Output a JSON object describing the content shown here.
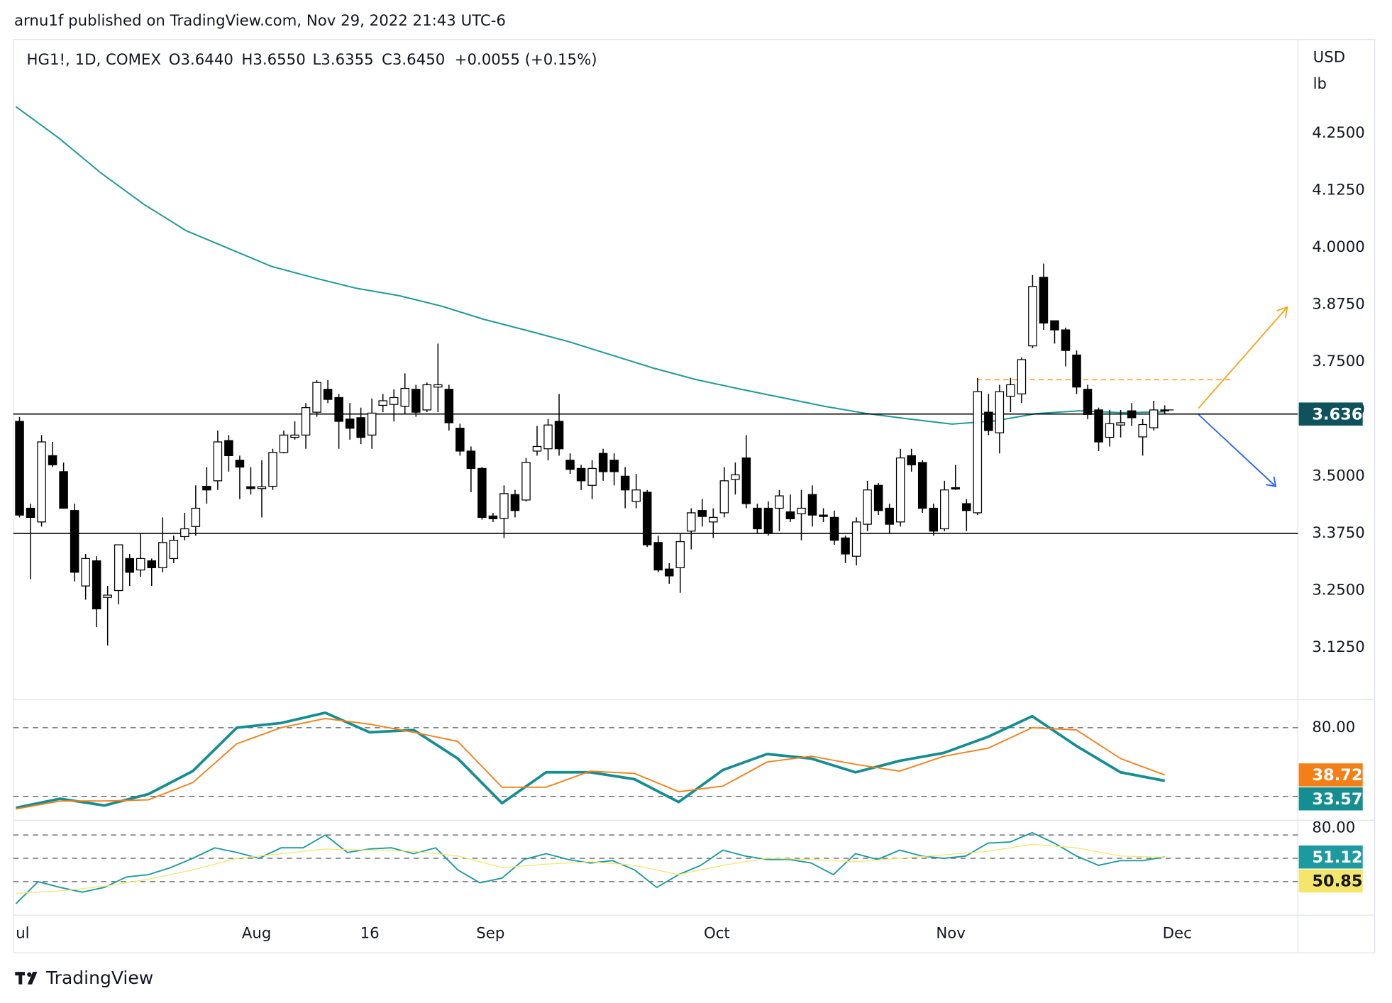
{
  "header": {
    "text": "arnu1f published on TradingView.com, Nov 29, 2022 21:43 UTC-6"
  },
  "footer": {
    "brand": "TradingView"
  },
  "chart_data": [
    {
      "type": "candlestick",
      "title": "HG1!, 1D, COMEX",
      "legend": {
        "open": "O3.6440",
        "high": "H3.6550",
        "low": "L3.6355",
        "close": "C3.6450",
        "change": "+0.0055 (+0.15%)"
      },
      "units": [
        "USD",
        "lb"
      ],
      "ylim": [
        3.008,
        4.456
      ],
      "yticks": [
        {
          "value": 4.25,
          "label": "4.2500"
        },
        {
          "value": 4.125,
          "label": "4.1250"
        },
        {
          "value": 4,
          "label": "4.0000"
        },
        {
          "value": 3.875,
          "label": "3.8750"
        },
        {
          "value": 3.75,
          "label": "3.7500"
        },
        {
          "value": 3.5,
          "label": "3.5000"
        },
        {
          "value": 3.375,
          "label": "3.3750"
        },
        {
          "value": 3.25,
          "label": "3.2500"
        },
        {
          "value": 3.125,
          "label": "3.1250"
        }
      ],
      "grid": false,
      "xlim": [
        "2022-06-28",
        "2022-12-17"
      ],
      "xticks": [
        {
          "value": "2022-07-01",
          "label": "ul"
        },
        {
          "value": "2022-08-01",
          "label": "Aug"
        },
        {
          "value": "2022-08-16",
          "label": "16"
        },
        {
          "value": "2022-09-01",
          "label": "Sep"
        },
        {
          "value": "2022-10-01",
          "label": "Oct"
        },
        {
          "value": "2022-11-01",
          "label": "Nov"
        },
        {
          "value": "2022-12-01",
          "label": "Dec"
        }
      ],
      "up_color": "#ffffff",
      "down_color": "#000000",
      "open": [
        3.62,
        3.43,
        3.4,
        3.545,
        3.51,
        3.425,
        3.26,
        3.315,
        3.235,
        3.25,
        3.32,
        3.295,
        3.315,
        3.3,
        3.32,
        3.368,
        3.39,
        3.478,
        3.49,
        3.578,
        3.535,
        3.477,
        3.473,
        3.478,
        3.552,
        3.585,
        3.59,
        3.64,
        3.69,
        3.672,
        3.625,
        3.628,
        3.59,
        3.655,
        3.657,
        3.653,
        3.69,
        3.645,
        3.695,
        3.69,
        3.605,
        3.555,
        3.517,
        3.413,
        3.408,
        3.46,
        3.448,
        3.555,
        3.56,
        3.62,
        3.535,
        3.517,
        3.48,
        3.55,
        3.535,
        3.5,
        3.445,
        3.465,
        3.355,
        3.297,
        3.3,
        3.38,
        3.425,
        3.4,
        3.42,
        3.493,
        3.54,
        3.43,
        3.43,
        3.43,
        3.422,
        3.418,
        3.46,
        3.415,
        3.41,
        3.365,
        3.325,
        3.395,
        3.48,
        3.43,
        3.4,
        3.545,
        3.53,
        3.43,
        3.385,
        3.475,
        3.44,
        3.42,
        3.64,
        3.595,
        3.675,
        3.68,
        3.785,
        3.935,
        3.84,
        3.82,
        3.765,
        3.69,
        3.645,
        3.585,
        3.612,
        3.643,
        3.586,
        3.606,
        3.644
      ],
      "high": [
        3.63,
        3.44,
        3.59,
        3.575,
        3.53,
        3.44,
        3.33,
        3.325,
        3.26,
        3.35,
        3.33,
        3.375,
        3.32,
        3.41,
        3.37,
        3.42,
        3.48,
        3.52,
        3.6,
        3.59,
        3.545,
        3.52,
        3.535,
        3.56,
        3.6,
        3.62,
        3.66,
        3.71,
        3.71,
        3.68,
        3.66,
        3.65,
        3.67,
        3.68,
        3.69,
        3.725,
        3.7,
        3.705,
        3.79,
        3.7,
        3.615,
        3.565,
        3.52,
        3.42,
        3.48,
        3.47,
        3.54,
        3.61,
        3.625,
        3.68,
        3.55,
        3.525,
        3.535,
        3.56,
        3.55,
        3.52,
        3.505,
        3.47,
        3.37,
        3.31,
        3.375,
        3.43,
        3.45,
        3.43,
        3.52,
        3.53,
        3.59,
        3.44,
        3.445,
        3.47,
        3.46,
        3.47,
        3.48,
        3.43,
        3.425,
        3.37,
        3.41,
        3.49,
        3.485,
        3.44,
        3.56,
        3.56,
        3.535,
        3.44,
        3.49,
        3.525,
        3.45,
        3.715,
        3.68,
        3.7,
        3.715,
        3.76,
        3.94,
        3.965,
        3.84,
        3.825,
        3.775,
        3.7,
        3.65,
        3.645,
        3.645,
        3.66,
        3.625,
        3.665,
        3.655
      ],
      "low": [
        3.41,
        3.275,
        3.39,
        3.52,
        3.43,
        3.27,
        3.23,
        3.17,
        3.13,
        3.22,
        3.26,
        3.28,
        3.26,
        3.29,
        3.31,
        3.36,
        3.37,
        3.44,
        3.47,
        3.51,
        3.45,
        3.46,
        3.41,
        3.47,
        3.55,
        3.58,
        3.56,
        3.63,
        3.66,
        3.56,
        3.58,
        3.57,
        3.56,
        3.64,
        3.62,
        3.635,
        3.63,
        3.64,
        3.64,
        3.6,
        3.545,
        3.465,
        3.405,
        3.4,
        3.365,
        3.41,
        3.445,
        3.545,
        3.535,
        3.545,
        3.505,
        3.47,
        3.45,
        3.49,
        3.48,
        3.43,
        3.43,
        3.345,
        3.29,
        3.265,
        3.245,
        3.34,
        3.39,
        3.365,
        3.41,
        3.46,
        3.43,
        3.375,
        3.37,
        3.38,
        3.4,
        3.36,
        3.39,
        3.4,
        3.35,
        3.31,
        3.305,
        3.38,
        3.415,
        3.375,
        3.39,
        3.51,
        3.42,
        3.37,
        3.38,
        3.47,
        3.38,
        3.415,
        3.59,
        3.55,
        3.64,
        3.66,
        3.78,
        3.82,
        3.79,
        3.74,
        3.68,
        3.625,
        3.555,
        3.565,
        3.585,
        3.61,
        3.545,
        3.6,
        3.6355
      ],
      "close": [
        3.415,
        3.41,
        3.575,
        3.525,
        3.43,
        3.29,
        3.32,
        3.21,
        3.24,
        3.35,
        3.29,
        3.32,
        3.3,
        3.355,
        3.36,
        3.385,
        3.43,
        3.47,
        3.575,
        3.545,
        3.52,
        3.473,
        3.477,
        3.552,
        3.59,
        3.59,
        3.65,
        3.705,
        3.668,
        3.62,
        3.605,
        3.585,
        3.638,
        3.665,
        3.672,
        3.692,
        3.64,
        3.7,
        3.7,
        3.617,
        3.555,
        3.517,
        3.41,
        3.407,
        3.462,
        3.425,
        3.53,
        3.565,
        3.612,
        3.56,
        3.515,
        3.49,
        3.517,
        3.51,
        3.51,
        3.47,
        3.47,
        3.35,
        3.295,
        3.282,
        3.357,
        3.42,
        3.412,
        3.41,
        3.49,
        3.503,
        3.44,
        3.385,
        3.375,
        3.457,
        3.407,
        3.43,
        3.415,
        3.412,
        3.36,
        3.33,
        3.4,
        3.47,
        3.425,
        3.395,
        3.54,
        3.525,
        3.43,
        3.38,
        3.47,
        3.472,
        3.425,
        3.685,
        3.6,
        3.685,
        3.7,
        3.755,
        3.915,
        3.835,
        3.82,
        3.775,
        3.695,
        3.635,
        3.575,
        3.615,
        3.617,
        3.628,
        3.613,
        3.645,
        3.645
      ],
      "series": [
        {
          "color": "#1f9a98",
          "values": [
            4.308,
            4.24,
            4.163,
            4.095,
            4.037,
            3.998,
            3.959,
            3.934,
            3.911,
            3.895,
            3.872,
            3.843,
            3.819,
            3.794,
            3.765,
            3.736,
            3.711,
            3.691,
            3.672,
            3.653,
            3.637,
            3.625,
            3.614,
            3.621,
            3.637,
            3.643,
            3.639,
            3.641
          ]
        }
      ],
      "hlines": [
        {
          "value": 3.636,
          "label": "3.6360",
          "color": "#000000",
          "badge_color": "#10525c"
        },
        {
          "value": 3.375,
          "color": "#000000"
        }
      ],
      "resistance": {
        "value": 3.711,
        "color": "#f5a623"
      },
      "last_price": {
        "value": 3.645,
        "label": "3.6450"
      }
    },
    {
      "type": "line",
      "ylim": [
        0,
        100
      ],
      "yticks": [
        {
          "value": 80,
          "label": "80.00"
        }
      ],
      "levels": [
        80,
        20
      ],
      "series": [
        {
          "color": "#158e92",
          "width": 3,
          "values": [
            10,
            18,
            12,
            22,
            42,
            80,
            84,
            93,
            76,
            78,
            53,
            14,
            41,
            41,
            35,
            15,
            43,
            57,
            53,
            41,
            51,
            58,
            72,
            90,
            64,
            41,
            33.57
          ]
        },
        {
          "color": "#f57f17",
          "width": 1.5,
          "values": [
            9,
            16,
            16,
            17,
            32,
            66,
            80,
            88,
            83,
            76,
            68,
            28,
            28,
            42,
            40,
            24,
            29,
            50,
            55,
            48,
            42,
            55,
            62,
            80,
            78,
            53,
            38.72
          ]
        }
      ]
    },
    {
      "type": "line",
      "ylim": [
        2,
        82
      ],
      "yticks": [
        {
          "value": 80,
          "label": "80.00"
        }
      ],
      "levels": [
        70,
        50,
        30
      ],
      "series": [
        {
          "color": "#1c9aa0",
          "width": 1.5,
          "values": [
            11,
            30,
            25,
            21,
            25,
            34,
            36,
            42,
            50,
            59,
            55,
            50,
            59,
            59,
            70,
            55,
            58,
            59,
            54,
            59,
            40,
            29,
            33,
            49,
            54,
            49,
            46,
            48,
            40,
            25,
            36,
            44,
            57,
            52,
            49,
            49,
            46,
            36,
            54,
            49,
            57,
            52,
            50,
            52,
            63,
            64,
            72,
            63,
            52,
            44,
            48,
            48,
            51.12
          ]
        },
        {
          "color": "#f5e56b",
          "width": 1,
          "values": [
            20,
            22,
            26,
            32,
            40,
            50,
            54,
            58,
            57,
            56,
            52,
            42,
            45,
            47,
            44,
            36,
            44,
            50,
            49,
            47,
            50,
            53,
            56,
            62,
            59,
            52,
            50.85
          ]
        }
      ]
    }
  ]
}
